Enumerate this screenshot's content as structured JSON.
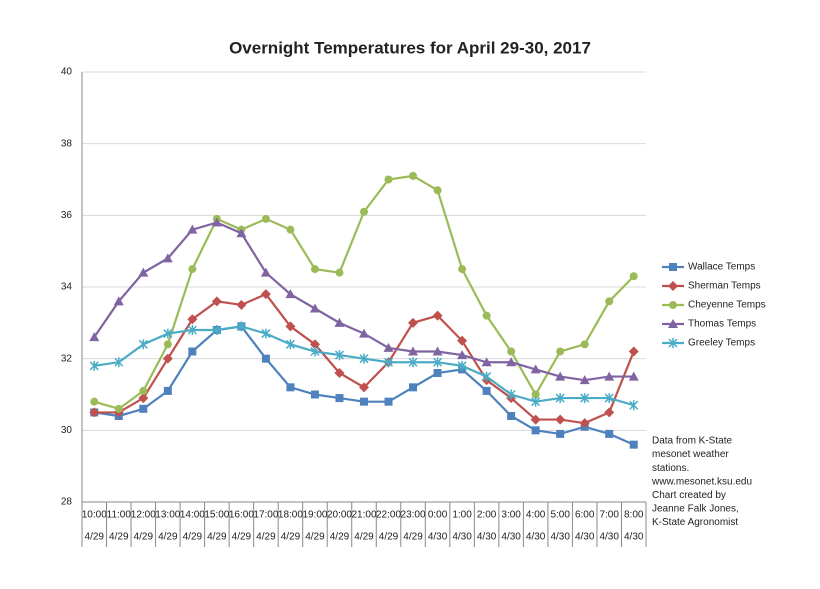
{
  "chart_data": {
    "type": "line",
    "title": "Overnight Temperatures for April 29-30, 2017",
    "categories": [
      "10:00",
      "11:00",
      "12:00",
      "13:00",
      "14:00",
      "15:00",
      "16:00",
      "17:00",
      "18:00",
      "19:00",
      "20:00",
      "21:00",
      "22:00",
      "23:00",
      "0:00",
      "1:00",
      "2:00",
      "3:00",
      "4:00",
      "5:00",
      "6:00",
      "7:00",
      "8:00"
    ],
    "category_dates": [
      "4/29",
      "4/29",
      "4/29",
      "4/29",
      "4/29",
      "4/29",
      "4/29",
      "4/29",
      "4/29",
      "4/29",
      "4/29",
      "4/29",
      "4/29",
      "4/29",
      "4/30",
      "4/30",
      "4/30",
      "4/30",
      "4/30",
      "4/30",
      "4/30",
      "4/30",
      "4/30"
    ],
    "series": [
      {
        "name": "Wallace Temps",
        "color": "#4f81bd",
        "marker": "square",
        "values": [
          30.5,
          30.4,
          30.6,
          31.1,
          32.2,
          32.8,
          32.9,
          32.0,
          31.2,
          31.0,
          30.9,
          30.8,
          30.8,
          31.2,
          31.6,
          31.7,
          31.1,
          30.4,
          30.0,
          29.9,
          30.1,
          29.9,
          29.6
        ]
      },
      {
        "name": "Sherman Temps",
        "color": "#c0504d",
        "marker": "diamond",
        "values": [
          30.5,
          30.5,
          30.9,
          32.0,
          33.1,
          33.6,
          33.5,
          33.8,
          32.9,
          32.4,
          31.6,
          31.2,
          31.9,
          33.0,
          33.2,
          32.5,
          31.4,
          30.9,
          30.3,
          30.3,
          30.2,
          30.5,
          32.2
        ]
      },
      {
        "name": "Cheyenne Temps",
        "color": "#9bbb59",
        "marker": "circle",
        "values": [
          30.8,
          30.6,
          31.1,
          32.4,
          34.5,
          35.9,
          35.6,
          35.9,
          35.6,
          34.5,
          34.4,
          36.1,
          37.0,
          37.1,
          36.7,
          34.5,
          33.2,
          32.2,
          31.0,
          32.2,
          32.4,
          33.6,
          34.3
        ]
      },
      {
        "name": "Thomas Temps",
        "color": "#8064a2",
        "marker": "triangle",
        "values": [
          32.6,
          33.6,
          34.4,
          34.8,
          35.6,
          35.8,
          35.5,
          34.4,
          33.8,
          33.4,
          33.0,
          32.7,
          32.3,
          32.2,
          32.2,
          32.1,
          31.9,
          31.9,
          31.7,
          31.5,
          31.4,
          31.5,
          31.5
        ]
      },
      {
        "name": "Greeley Temps",
        "color": "#4bacc6",
        "marker": "star",
        "values": [
          31.8,
          31.9,
          32.4,
          32.7,
          32.8,
          32.8,
          32.9,
          32.7,
          32.4,
          32.2,
          32.1,
          32.0,
          31.9,
          31.9,
          31.9,
          31.8,
          31.5,
          31.0,
          30.8,
          30.9,
          30.9,
          30.9,
          30.7
        ]
      }
    ],
    "ylim": [
      28,
      40
    ],
    "yticks": [
      28,
      30,
      32,
      34,
      36,
      38,
      40
    ],
    "grid": true,
    "legend": "right",
    "annotation": [
      "Data from K-State",
      "mesonet weather",
      "stations.",
      "www.mesonet.ksu.edu",
      "Chart created by",
      "Jeanne Falk Jones,",
      "K-State Agronomist"
    ]
  }
}
